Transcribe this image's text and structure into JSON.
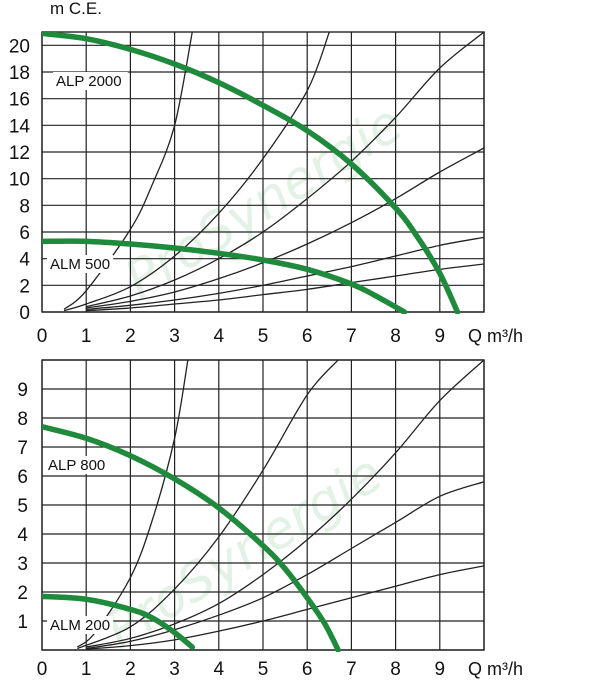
{
  "chart_data": [
    {
      "type": "line",
      "ylabel": "m C.E.",
      "xlabel": "Q m³/h",
      "xlim": [
        0,
        10
      ],
      "ylim": [
        0,
        21
      ],
      "x_ticks": [
        "0",
        "1",
        "2",
        "3",
        "4",
        "5",
        "6",
        "7",
        "8",
        "9"
      ],
      "y_ticks": [
        "0",
        "2",
        "4",
        "6",
        "8",
        "10",
        "12",
        "14",
        "16",
        "18",
        "20"
      ],
      "grid": true,
      "watermark": "ProSynergie",
      "colors": {
        "pump_curve": "#1f8a3c",
        "system_curve": "#222222",
        "grid": "#222222"
      },
      "series": [
        {
          "name": "ALP 2000",
          "role": "pump",
          "x": [
            0,
            1,
            2,
            3,
            4,
            5,
            6,
            7,
            8,
            8.5,
            9,
            9.4
          ],
          "y": [
            20.9,
            20.5,
            19.7,
            18.6,
            17.2,
            15.5,
            13.6,
            11.1,
            7.8,
            5.6,
            2.9,
            0
          ]
        },
        {
          "name": "ALM 500",
          "role": "pump",
          "x": [
            0,
            1,
            2,
            3,
            4,
            5,
            6,
            7,
            7.5,
            8.2
          ],
          "y": [
            5.3,
            5.3,
            5.1,
            4.8,
            4.4,
            3.9,
            3.2,
            2.1,
            1.3,
            0
          ]
        },
        {
          "role": "system",
          "x": [
            0.5,
            1,
            2,
            2.5,
            3,
            3.4
          ],
          "y": [
            0.2,
            1.6,
            6.2,
            9.6,
            14.0,
            21.0
          ]
        },
        {
          "role": "system",
          "x": [
            0.5,
            1,
            2,
            3,
            4,
            5,
            6,
            6.5
          ],
          "y": [
            0.1,
            0.6,
            1.9,
            4.2,
            7.4,
            11.5,
            16.6,
            21.0
          ]
        },
        {
          "role": "system",
          "x": [
            1,
            2,
            3,
            4,
            5,
            6,
            7,
            8,
            9,
            10
          ],
          "y": [
            0.4,
            1.2,
            2.4,
            4.0,
            6.0,
            8.5,
            11.3,
            14.6,
            18.3,
            21.0
          ]
        },
        {
          "role": "system",
          "x": [
            1,
            2,
            3,
            4,
            5,
            6,
            7,
            8,
            9,
            10
          ],
          "y": [
            0.3,
            0.8,
            1.5,
            2.5,
            3.7,
            5.1,
            6.7,
            8.5,
            10.5,
            12.3
          ]
        },
        {
          "role": "system",
          "x": [
            1,
            2,
            3,
            4,
            5,
            6,
            7,
            8,
            9,
            10
          ],
          "y": [
            0.2,
            0.5,
            0.9,
            1.4,
            2.0,
            2.7,
            3.4,
            4.2,
            5.0,
            5.6
          ]
        },
        {
          "role": "system",
          "x": [
            1,
            2,
            3,
            4,
            5,
            6,
            7,
            8,
            9,
            10
          ],
          "y": [
            0.1,
            0.3,
            0.6,
            0.9,
            1.3,
            1.7,
            2.2,
            2.7,
            3.2,
            3.6
          ]
        }
      ]
    },
    {
      "type": "line",
      "ylabel": "",
      "xlabel": "Q m³/h",
      "xlim": [
        0,
        10
      ],
      "ylim": [
        0,
        10
      ],
      "x_ticks": [
        "0",
        "1",
        "2",
        "3",
        "4",
        "5",
        "6",
        "7",
        "8",
        "9"
      ],
      "y_ticks": [
        "1",
        "2",
        "3",
        "4",
        "5",
        "6",
        "7",
        "8",
        "9"
      ],
      "grid": true,
      "watermark": "ProSynergie",
      "colors": {
        "pump_curve": "#1f8a3c",
        "system_curve": "#222222",
        "grid": "#222222"
      },
      "series": [
        {
          "name": "ALP 800",
          "role": "pump",
          "x": [
            0,
            1,
            2,
            3,
            4,
            5,
            5.5,
            6,
            6.4,
            6.7
          ],
          "y": [
            7.7,
            7.3,
            6.7,
            5.9,
            4.9,
            3.6,
            2.8,
            1.8,
            0.9,
            0
          ]
        },
        {
          "name": "ALM 200",
          "role": "pump",
          "x": [
            0,
            1,
            2,
            2.5,
            3,
            3.4
          ],
          "y": [
            1.85,
            1.75,
            1.4,
            1.1,
            0.6,
            0.1
          ]
        },
        {
          "role": "system",
          "x": [
            0.8,
            1.2,
            2,
            2.5,
            3,
            3.3
          ],
          "y": [
            0.1,
            0.6,
            2.5,
            4.5,
            7.3,
            10.0
          ]
        },
        {
          "role": "system",
          "x": [
            0.8,
            2,
            3,
            4,
            5,
            6,
            6.7
          ],
          "y": [
            0.05,
            0.8,
            2.1,
            3.9,
            6.2,
            8.8,
            10.0
          ]
        },
        {
          "role": "system",
          "x": [
            1,
            2,
            3,
            4,
            5,
            6,
            7,
            8,
            9,
            10
          ],
          "y": [
            0.1,
            0.4,
            0.9,
            1.6,
            2.6,
            3.8,
            5.2,
            6.8,
            8.6,
            10.0
          ]
        },
        {
          "role": "system",
          "x": [
            1,
            2,
            3,
            4,
            5,
            6,
            7,
            8,
            9,
            10
          ],
          "y": [
            0.05,
            0.3,
            0.7,
            1.2,
            1.8,
            2.6,
            3.5,
            4.4,
            5.3,
            5.8
          ]
        },
        {
          "role": "system",
          "x": [
            1,
            2,
            3,
            4,
            5,
            6,
            7,
            8,
            9,
            10
          ],
          "y": [
            0.03,
            0.15,
            0.35,
            0.65,
            1.0,
            1.4,
            1.8,
            2.2,
            2.6,
            2.9
          ]
        }
      ]
    }
  ]
}
